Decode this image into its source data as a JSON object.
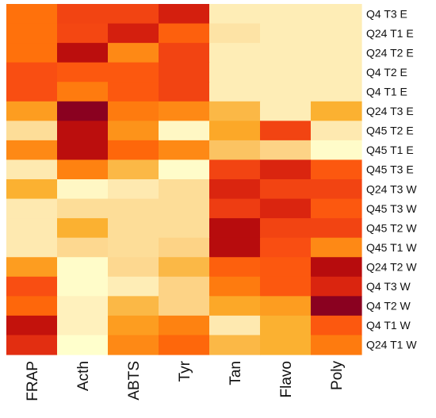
{
  "chart_data": {
    "type": "heatmap",
    "title": "",
    "xlabel": "",
    "ylabel": "",
    "columns": [
      "FRAP",
      "Acth",
      "ABTS",
      "Tyr",
      "Tan",
      "Flavo",
      "Poly"
    ],
    "rows": [
      "Q4 T3 E",
      "Q24 T1 E",
      "Q24 T2 E",
      "Q4 T2 E",
      "Q4 T1 E",
      "Q24 T3 E",
      "Q45 T2 E",
      "Q45 T1 E",
      "Q45 T3 E",
      "Q24 T3 W",
      "Q45 T3 W",
      "Q45 T2 W",
      "Q45 T1 W",
      "Q24 T2 W",
      "Q4 T3 W",
      "Q4 T2 W",
      "Q4 T1 W",
      "Q24 T1 W"
    ],
    "color_scale": {
      "low": "#FFFFCC",
      "high": "#800026",
      "palette": [
        "#FFFFCC",
        "#FFF3C0",
        "#FDE5A8",
        "#FDD58A",
        "#FBC15E",
        "#FBAF2C",
        "#FD9A1E",
        "#FE8211",
        "#FF6A0A",
        "#FA5012",
        "#EB3812",
        "#D9230F",
        "#C0100C",
        "#A5050F",
        "#800026"
      ]
    },
    "values": [
      [
        0.55,
        0.68,
        0.68,
        0.8,
        0.1,
        0.1,
        0.1
      ],
      [
        0.55,
        0.67,
        0.8,
        0.6,
        0.15,
        0.1,
        0.1
      ],
      [
        0.55,
        0.87,
        0.48,
        0.68,
        0.1,
        0.1,
        0.1
      ],
      [
        0.65,
        0.62,
        0.62,
        0.68,
        0.1,
        0.1,
        0.1
      ],
      [
        0.65,
        0.52,
        0.62,
        0.68,
        0.1,
        0.1,
        0.1
      ],
      [
        0.42,
        0.98,
        0.52,
        0.48,
        0.32,
        0.1,
        0.35
      ],
      [
        0.18,
        0.87,
        0.45,
        0.05,
        0.38,
        0.68,
        0.12
      ],
      [
        0.48,
        0.87,
        0.58,
        0.48,
        0.28,
        0.22,
        0.02
      ],
      [
        0.12,
        0.5,
        0.32,
        0.02,
        0.68,
        0.78,
        0.62
      ],
      [
        0.35,
        0.05,
        0.12,
        0.18,
        0.78,
        0.68,
        0.68
      ],
      [
        0.12,
        0.18,
        0.18,
        0.18,
        0.7,
        0.78,
        0.62
      ],
      [
        0.12,
        0.35,
        0.18,
        0.18,
        0.88,
        0.68,
        0.68
      ],
      [
        0.12,
        0.2,
        0.18,
        0.22,
        0.88,
        0.65,
        0.48
      ],
      [
        0.42,
        0.02,
        0.2,
        0.32,
        0.6,
        0.62,
        0.88
      ],
      [
        0.65,
        0.02,
        0.1,
        0.22,
        0.52,
        0.62,
        0.78
      ],
      [
        0.58,
        0.08,
        0.32,
        0.22,
        0.38,
        0.42,
        0.98
      ],
      [
        0.85,
        0.08,
        0.42,
        0.5,
        0.12,
        0.35,
        0.62
      ],
      [
        0.75,
        0.0,
        0.48,
        0.58,
        0.32,
        0.35,
        0.52
      ]
    ],
    "grid": false,
    "legend": "none"
  }
}
